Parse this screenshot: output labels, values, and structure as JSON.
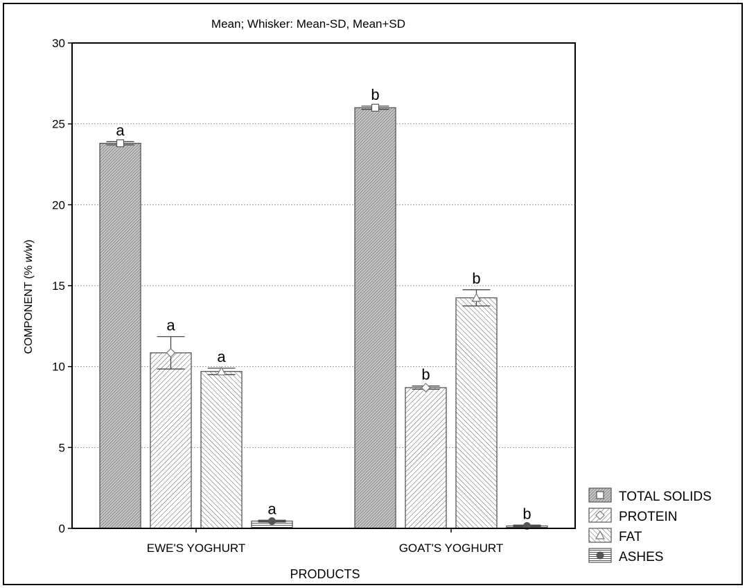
{
  "chart_data": {
    "type": "bar",
    "title": "Mean;  Whisker: Mean-SD, Mean+SD",
    "xlabel": "PRODUCTS",
    "ylabel_prefix": "COMPONENT (% ",
    "ylabel_italic": "w/w",
    "ylabel_suffix": ")",
    "categories": [
      "EWE'S YOGHURT",
      "GOAT'S YOGHURT"
    ],
    "ylim": [
      0,
      30
    ],
    "yticks": [
      "0",
      "5",
      "10",
      "15",
      "20",
      "25",
      "30"
    ],
    "grid": true,
    "legend_position": "bottom-right outside",
    "series": [
      {
        "name": "TOTAL SOLIDS",
        "values": [
          23.8,
          26.0
        ],
        "sd": [
          0.1,
          0.1
        ],
        "labels": [
          "a",
          "b"
        ],
        "marker": "square",
        "pattern": "dense"
      },
      {
        "name": "PROTEIN",
        "values": [
          10.85,
          8.7
        ],
        "sd": [
          1.0,
          0.1
        ],
        "labels": [
          "a",
          "b"
        ],
        "marker": "diamond",
        "pattern": "forward"
      },
      {
        "name": "FAT",
        "values": [
          9.7,
          14.25
        ],
        "sd": [
          0.2,
          0.5
        ],
        "labels": [
          "a",
          "b"
        ],
        "marker": "triangle",
        "pattern": "back"
      },
      {
        "name": "ASHES",
        "values": [
          0.45,
          0.15
        ],
        "sd": [
          0.05,
          0.05
        ],
        "labels": [
          "a",
          "b"
        ],
        "marker": "circle",
        "pattern": "horizontal"
      }
    ]
  }
}
